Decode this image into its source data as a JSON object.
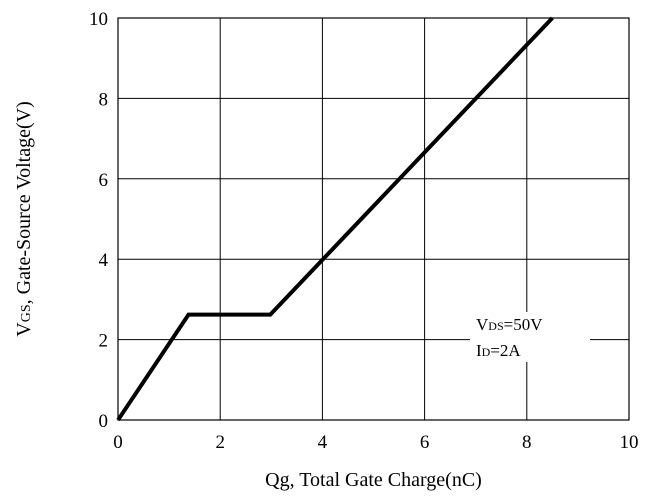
{
  "chart_data": {
    "type": "line",
    "title": "",
    "xlabel": "Qg, Total Gate Charge(nC)",
    "ylabel_main": "V",
    "ylabel_sub": "GS",
    "ylabel_rest": ", Gate-Source Voltage(V)",
    "xlim": [
      0,
      10
    ],
    "ylim": [
      0,
      10
    ],
    "x_ticks": [
      0,
      2,
      4,
      6,
      8,
      10
    ],
    "y_ticks": [
      0,
      2,
      4,
      6,
      8,
      10
    ],
    "x_tick_labels": [
      "0",
      "2",
      "4",
      "6",
      "8",
      "10"
    ],
    "y_tick_labels": [
      "0",
      "2",
      "4",
      "6",
      "8",
      "10"
    ],
    "grid": true,
    "legend": "none",
    "line_color": "#000000",
    "series": [
      {
        "x": [
          0,
          1.38,
          2.98,
          8.5
        ],
        "y": [
          0,
          2.62,
          2.62,
          10
        ]
      }
    ],
    "annotation": {
      "line1_main": "V",
      "line1_sub": "DS",
      "line1_rest": "=50V",
      "line2_main": "I",
      "line2_sub": "D",
      "line2_rest": "=2A"
    }
  }
}
